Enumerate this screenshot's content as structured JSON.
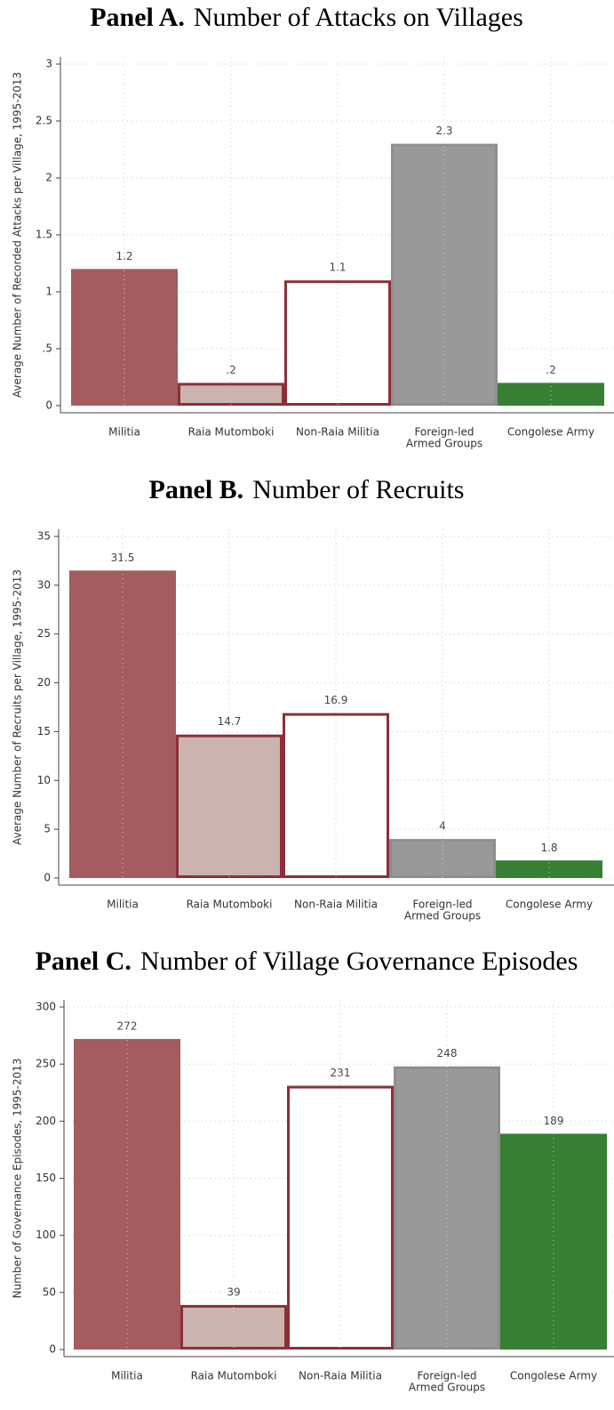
{
  "chart_data": [
    {
      "type": "bar",
      "panel": "Panel A.",
      "title": "Number of Attacks on Villages",
      "ylabel": "Average Number of Recorded Attacks per Village, 1995-2013",
      "categories": [
        "Militia",
        "Raia Mutomboki",
        "Non-Raia Militia",
        [
          "Foreign-led",
          "Armed Groups"
        ],
        "Congolese Army"
      ],
      "values": [
        1.2,
        0.2,
        1.1,
        2.3,
        0.2
      ],
      "value_labels": [
        "1.2",
        ".2",
        "1.1",
        "2.3",
        ".2"
      ],
      "colors": [
        "#a45c60",
        "#cbb3af",
        "#ffffff",
        "#999999",
        "#367f33"
      ],
      "edgecolors": [
        "#a45c60",
        "#8b3038",
        "#8b3038",
        "#8e8e8e",
        "#367f33"
      ],
      "ylim": [
        0,
        3
      ],
      "yticks": [
        0,
        {
          "value": 0.5,
          "label": ".5"
        },
        1,
        1.5,
        2,
        2.5,
        3
      ],
      "grid": true
    },
    {
      "type": "bar",
      "panel": "Panel B.",
      "title": "Number of Recruits",
      "ylabel": "Average Number of Recruits per Village, 1995-2013",
      "categories": [
        "Militia",
        "Raia Mutomboki",
        "Non-Raia Militia",
        [
          "Foreign-led",
          "Armed Groups"
        ],
        "Congolese Army"
      ],
      "values": [
        31.5,
        14.7,
        16.9,
        4,
        1.8
      ],
      "colors": [
        "#a45c60",
        "#cbb3af",
        "#ffffff",
        "#999999",
        "#367f33"
      ],
      "edgecolors": [
        "#a45c60",
        "#8b3038",
        "#8b3038",
        "#8e8e8e",
        "#367f33"
      ],
      "ylim": [
        0,
        35
      ],
      "yticks": [
        0,
        5,
        10,
        15,
        20,
        25,
        30,
        35
      ],
      "grid": true
    },
    {
      "type": "bar",
      "panel": "Panel C.",
      "title": "Number of Village Governance Episodes",
      "ylabel": "Number of Governance Episodes, 1995-2013",
      "categories": [
        "Militia",
        "Raia Mutomboki",
        "Non-Raia Militia",
        [
          "Foreign-led",
          "Armed Groups"
        ],
        "Congolese Army"
      ],
      "values": [
        272,
        39,
        231,
        248,
        189
      ],
      "colors": [
        "#a45c60",
        "#cbb3af",
        "#ffffff",
        "#999999",
        "#367f33"
      ],
      "edgecolors": [
        "#a45c60",
        "#8b3038",
        "#8b3038",
        "#8e8e8e",
        "#367f33"
      ],
      "ylim": [
        0,
        300
      ],
      "yticks": [
        0,
        50,
        100,
        150,
        200,
        250,
        300
      ],
      "grid": true
    }
  ]
}
